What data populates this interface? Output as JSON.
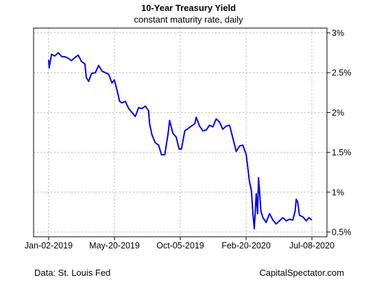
{
  "chart_data": {
    "type": "line",
    "title": "10-Year Treasury Yield",
    "subtitle": "constant maturity rate, daily",
    "xlabel": "",
    "ylabel": "",
    "x_ticks": [
      "Jan-02-2019",
      "May-20-2019",
      "Oct-05-2019",
      "Feb-20-2020",
      "Jul-08-2020"
    ],
    "y_ticks": [
      "3%",
      "2.5%",
      "2%",
      "1.5%",
      "1%",
      "0.5%"
    ],
    "y_tick_values": [
      3.0,
      2.5,
      2.0,
      1.5,
      1.0,
      0.5
    ],
    "ylim": [
      0.5,
      3.0
    ],
    "xlim": [
      "2019-01-02",
      "2020-07-08"
    ],
    "grid": true,
    "y_axis_side": "right",
    "line_color": "#0000ee",
    "series": [
      {
        "x": [
          "2019-01-02",
          "2019-01-03",
          "2019-01-08",
          "2019-01-15",
          "2019-01-22",
          "2019-01-30",
          "2019-02-05",
          "2019-02-12",
          "2019-02-19",
          "2019-02-26",
          "2019-03-05",
          "2019-03-12",
          "2019-03-19",
          "2019-03-22",
          "2019-03-27",
          "2019-04-02",
          "2019-04-10",
          "2019-04-17",
          "2019-04-24",
          "2019-05-01",
          "2019-05-08",
          "2019-05-15",
          "2019-05-20",
          "2019-05-24",
          "2019-05-31",
          "2019-06-05",
          "2019-06-12",
          "2019-06-19",
          "2019-06-26",
          "2019-07-03",
          "2019-07-10",
          "2019-07-17",
          "2019-07-24",
          "2019-07-31",
          "2019-08-02",
          "2019-08-07",
          "2019-08-14",
          "2019-08-21",
          "2019-08-27",
          "2019-09-03",
          "2019-09-10",
          "2019-09-13",
          "2019-09-20",
          "2019-09-27",
          "2019-10-03",
          "2019-10-08",
          "2019-10-15",
          "2019-10-22",
          "2019-10-29",
          "2019-11-05",
          "2019-11-08",
          "2019-11-15",
          "2019-11-22",
          "2019-11-29",
          "2019-12-06",
          "2019-12-13",
          "2019-12-20",
          "2019-12-27",
          "2020-01-03",
          "2020-01-10",
          "2020-01-17",
          "2020-01-24",
          "2020-01-31",
          "2020-02-07",
          "2020-02-14",
          "2020-02-21",
          "2020-02-28",
          "2020-03-03",
          "2020-03-06",
          "2020-03-09",
          "2020-03-13",
          "2020-03-16",
          "2020-03-18",
          "2020-03-23",
          "2020-03-27",
          "2020-04-03",
          "2020-04-10",
          "2020-04-17",
          "2020-04-24",
          "2020-05-01",
          "2020-05-08",
          "2020-05-15",
          "2020-05-22",
          "2020-05-29",
          "2020-06-03",
          "2020-06-05",
          "2020-06-08",
          "2020-06-12",
          "2020-06-19",
          "2020-06-26",
          "2020-07-02",
          "2020-07-08"
        ],
        "y": [
          2.66,
          2.56,
          2.73,
          2.71,
          2.75,
          2.7,
          2.7,
          2.68,
          2.65,
          2.69,
          2.72,
          2.64,
          2.61,
          2.44,
          2.39,
          2.49,
          2.5,
          2.59,
          2.52,
          2.5,
          2.48,
          2.37,
          2.41,
          2.32,
          2.14,
          2.12,
          2.14,
          2.05,
          2.0,
          1.95,
          2.06,
          2.05,
          2.08,
          2.02,
          1.86,
          1.72,
          1.62,
          1.59,
          1.47,
          1.47,
          1.74,
          1.9,
          1.74,
          1.69,
          1.54,
          1.54,
          1.77,
          1.8,
          1.83,
          1.86,
          1.94,
          1.83,
          1.77,
          1.78,
          1.84,
          1.82,
          1.92,
          1.88,
          1.79,
          1.83,
          1.84,
          1.68,
          1.51,
          1.58,
          1.59,
          1.47,
          1.13,
          1.02,
          0.74,
          0.54,
          0.98,
          0.73,
          1.18,
          0.76,
          0.68,
          0.62,
          0.73,
          0.65,
          0.6,
          0.64,
          0.68,
          0.64,
          0.66,
          0.65,
          0.77,
          0.91,
          0.88,
          0.71,
          0.69,
          0.64,
          0.68,
          0.65
        ]
      }
    ],
    "source": "Data: St. Louis Fed",
    "credit": "CapitalSpectator.com"
  }
}
